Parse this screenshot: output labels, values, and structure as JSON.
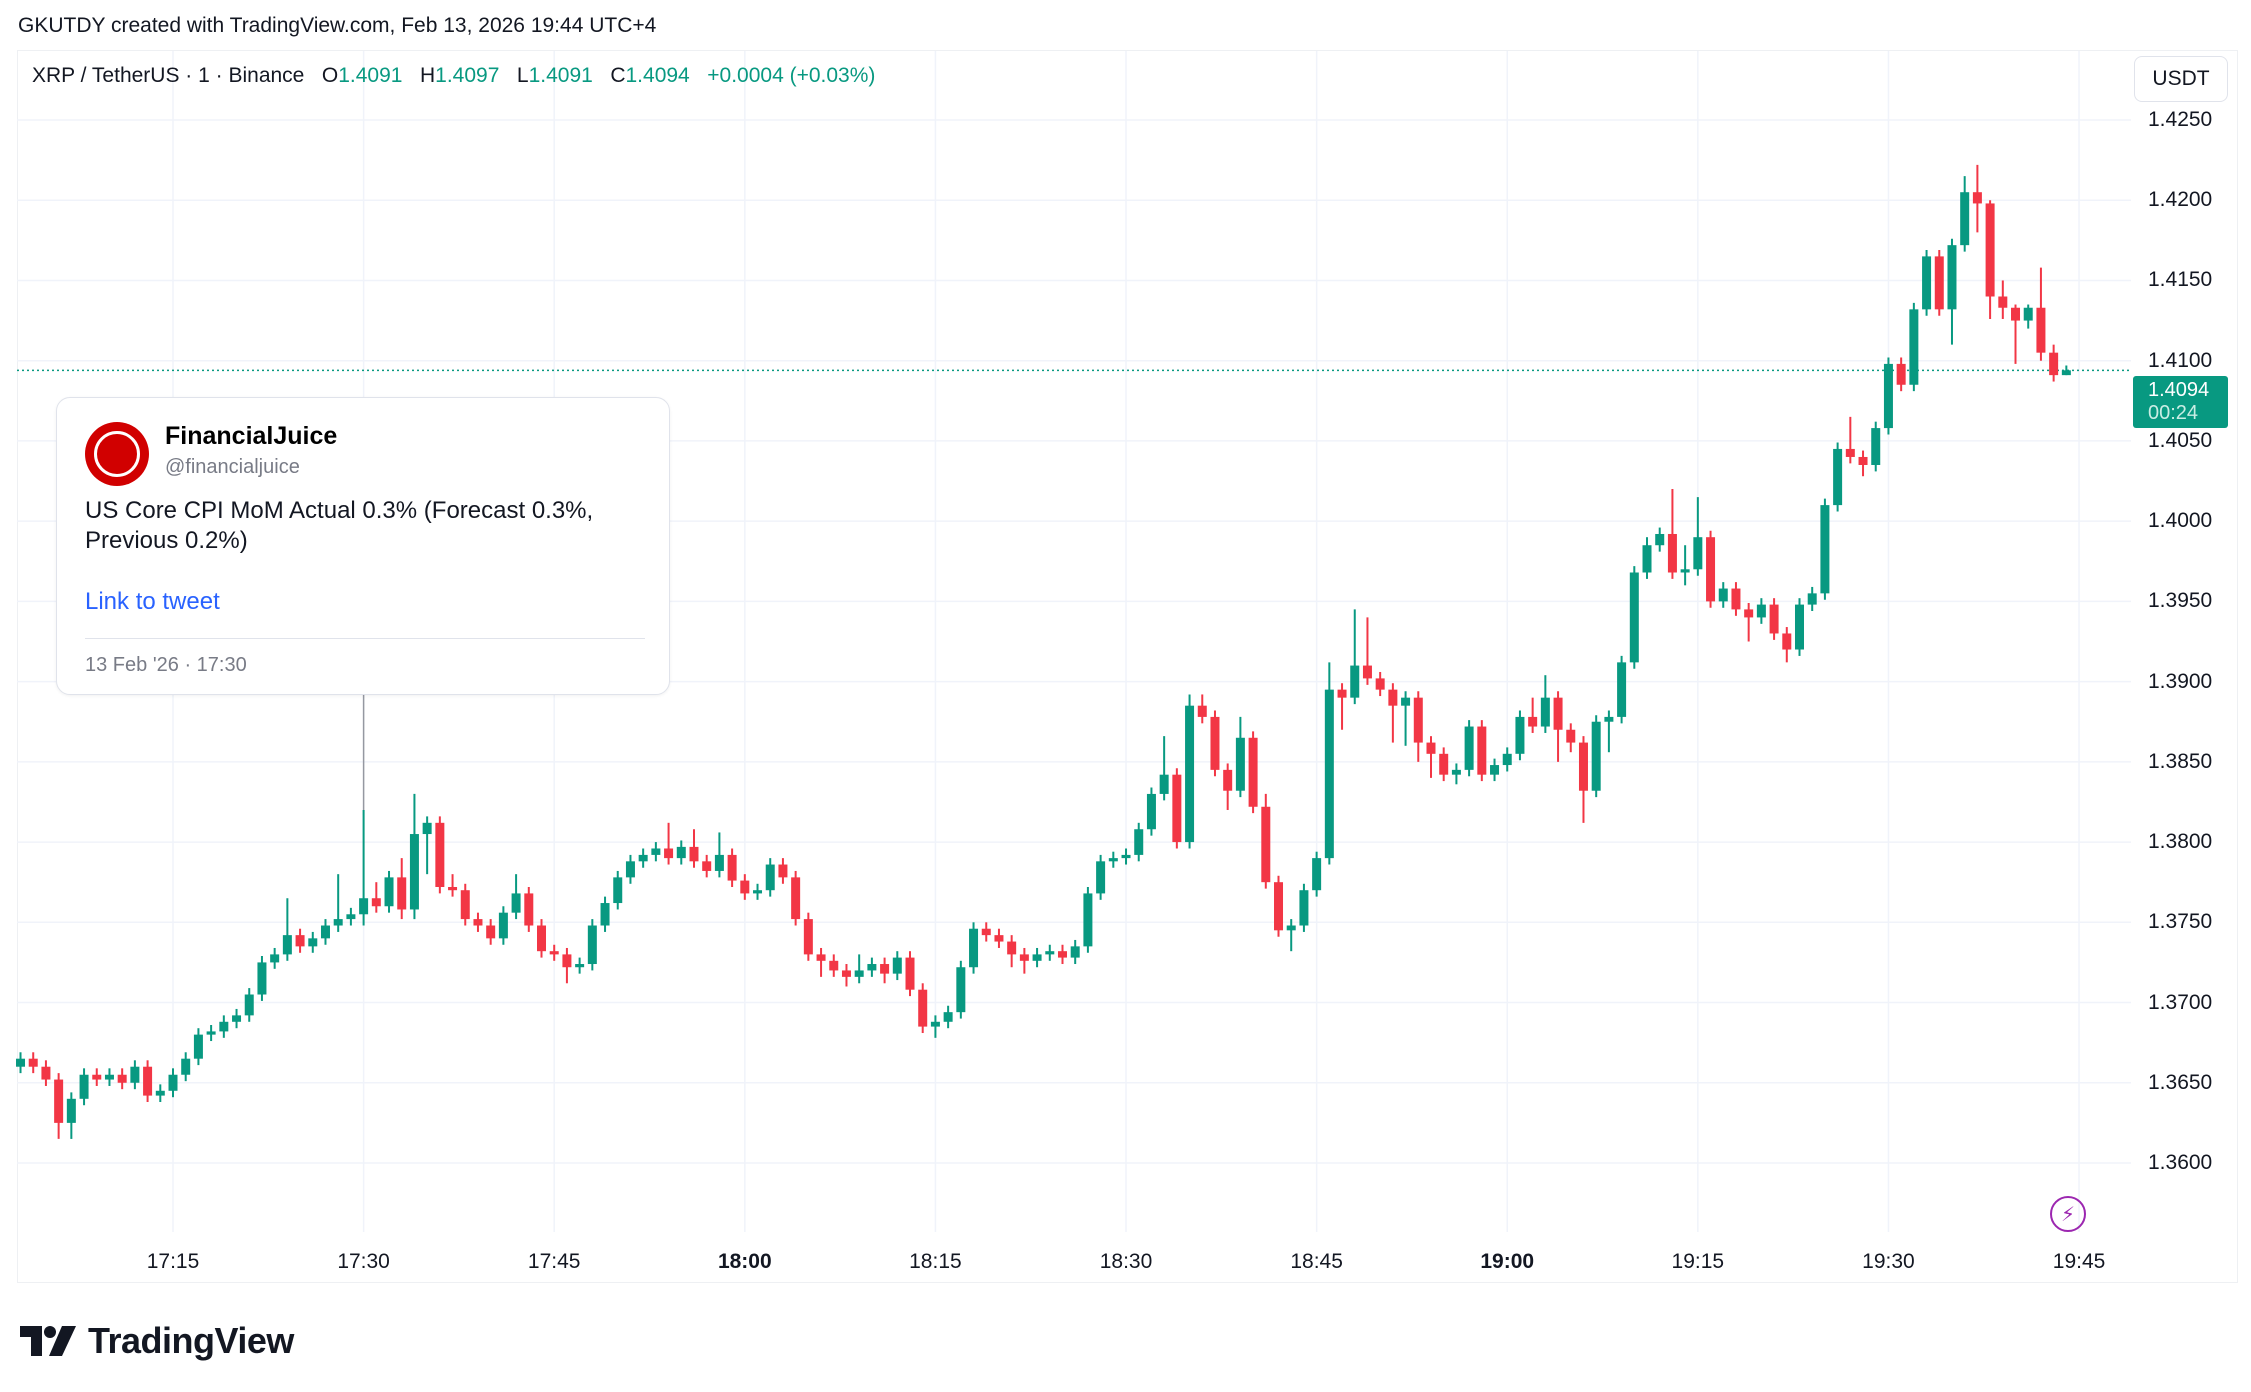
{
  "credit": "GKUTDY created with TradingView.com, Feb 13, 2026 19:44 UTC+4",
  "legend": {
    "symbol": "XRP / TetherUS · 1 · Binance",
    "o_label": "O",
    "o": "1.4091",
    "h_label": "H",
    "h": "1.4097",
    "l_label": "L",
    "l": "1.4091",
    "c_label": "C",
    "c": "1.4094",
    "change": "+0.0004 (+0.03%)"
  },
  "currency_button": "USDT",
  "current_price": {
    "price": "1.4094",
    "countdown": "00:24"
  },
  "tweet": {
    "name": "FinancialJuice",
    "handle": "@financialjuice",
    "text": "US Core CPI MoM Actual 0.3% (Forecast 0.3%, Previous 0.2%)",
    "link": "Link to tweet",
    "date": "13 Feb '26 · 17:30",
    "time": "17:30"
  },
  "brand": "TradingView",
  "colors": {
    "up": "#089981",
    "down": "#F23645",
    "grid": "#f0f3fa",
    "event": "#9c27b0",
    "link": "#2962ff"
  },
  "icons": {
    "event": "lightning-icon",
    "avatar": "financialjuice-logo"
  },
  "chart_data": {
    "type": "candlestick",
    "interval": "1m",
    "ylim": [
      1.3555,
      1.4285
    ],
    "y_ticks": [
      "1.4250",
      "1.4200",
      "1.4150",
      "1.4100",
      "1.4050",
      "1.4000",
      "1.3950",
      "1.3900",
      "1.3850",
      "1.3800",
      "1.3750",
      "1.3700",
      "1.3650",
      "1.3600"
    ],
    "x_ticks": [
      {
        "t": "17:15",
        "bold": false
      },
      {
        "t": "17:30",
        "bold": false
      },
      {
        "t": "17:45",
        "bold": false
      },
      {
        "t": "18:00",
        "bold": true
      },
      {
        "t": "18:15",
        "bold": false
      },
      {
        "t": "18:30",
        "bold": false
      },
      {
        "t": "18:45",
        "bold": false
      },
      {
        "t": "19:00",
        "bold": true
      },
      {
        "t": "19:15",
        "bold": false
      },
      {
        "t": "19:30",
        "bold": false
      },
      {
        "t": "19:45",
        "bold": false
      }
    ],
    "grid": true,
    "last_price": 1.4094,
    "candles_columns": [
      "time",
      "open",
      "high",
      "low",
      "close"
    ],
    "candles": [
      [
        "17:03",
        1.366,
        1.3669,
        1.3656,
        1.3665
      ],
      [
        "17:04",
        1.3665,
        1.3669,
        1.3656,
        1.366
      ],
      [
        "17:05",
        1.366,
        1.3664,
        1.3648,
        1.3652
      ],
      [
        "17:06",
        1.3652,
        1.3656,
        1.3615,
        1.3625
      ],
      [
        "17:07",
        1.3625,
        1.3644,
        1.3615,
        1.364
      ],
      [
        "17:08",
        1.364,
        1.3659,
        1.3636,
        1.3655
      ],
      [
        "17:09",
        1.3655,
        1.3659,
        1.3648,
        1.3652
      ],
      [
        "17:10",
        1.3652,
        1.3659,
        1.3648,
        1.3655
      ],
      [
        "17:11",
        1.3655,
        1.3659,
        1.3646,
        1.365
      ],
      [
        "17:12",
        1.365,
        1.3664,
        1.3646,
        1.366
      ],
      [
        "17:13",
        1.366,
        1.3664,
        1.3638,
        1.3642
      ],
      [
        "17:14",
        1.3642,
        1.3649,
        1.3638,
        1.3645
      ],
      [
        "17:15",
        1.3645,
        1.3659,
        1.3641,
        1.3655
      ],
      [
        "17:16",
        1.3655,
        1.3669,
        1.3651,
        1.3665
      ],
      [
        "17:17",
        1.3665,
        1.3684,
        1.3661,
        1.368
      ],
      [
        "17:18",
        1.368,
        1.3686,
        1.3676,
        1.3682
      ],
      [
        "17:19",
        1.3682,
        1.3692,
        1.3678,
        1.3688
      ],
      [
        "17:20",
        1.3688,
        1.3696,
        1.3684,
        1.3692
      ],
      [
        "17:21",
        1.3692,
        1.3709,
        1.3688,
        1.3705
      ],
      [
        "17:22",
        1.3705,
        1.3729,
        1.3701,
        1.3725
      ],
      [
        "17:23",
        1.3725,
        1.3734,
        1.3721,
        1.373
      ],
      [
        "17:24",
        1.373,
        1.3765,
        1.3726,
        1.3742
      ],
      [
        "17:25",
        1.3742,
        1.3746,
        1.3731,
        1.3735
      ],
      [
        "17:26",
        1.3735,
        1.3744,
        1.3731,
        1.374
      ],
      [
        "17:27",
        1.374,
        1.3752,
        1.3736,
        1.3748
      ],
      [
        "17:28",
        1.3748,
        1.378,
        1.3744,
        1.3752
      ],
      [
        "17:29",
        1.3752,
        1.3759,
        1.3748,
        1.3755
      ],
      [
        "17:30",
        1.3755,
        1.382,
        1.3748,
        1.3765
      ],
      [
        "17:31",
        1.3765,
        1.3775,
        1.3756,
        1.376
      ],
      [
        "17:32",
        1.376,
        1.3782,
        1.3756,
        1.3778
      ],
      [
        "17:33",
        1.3778,
        1.379,
        1.3752,
        1.3758
      ],
      [
        "17:34",
        1.3758,
        1.383,
        1.3752,
        1.3805
      ],
      [
        "17:35",
        1.3805,
        1.3816,
        1.378,
        1.3812
      ],
      [
        "17:36",
        1.3812,
        1.3816,
        1.3768,
        1.3772
      ],
      [
        "17:37",
        1.3772,
        1.378,
        1.3766,
        1.377
      ],
      [
        "17:38",
        1.377,
        1.3774,
        1.3748,
        1.3752
      ],
      [
        "17:39",
        1.3752,
        1.3756,
        1.3744,
        1.3748
      ],
      [
        "17:40",
        1.3748,
        1.3752,
        1.3736,
        1.374
      ],
      [
        "17:41",
        1.374,
        1.376,
        1.3736,
        1.3756
      ],
      [
        "17:42",
        1.3756,
        1.378,
        1.3752,
        1.3768
      ],
      [
        "17:43",
        1.3768,
        1.3772,
        1.3744,
        1.3748
      ],
      [
        "17:44",
        1.3748,
        1.3752,
        1.3728,
        1.3732
      ],
      [
        "17:45",
        1.3732,
        1.3736,
        1.3726,
        1.373
      ],
      [
        "17:46",
        1.373,
        1.3734,
        1.3712,
        1.3722
      ],
      [
        "17:47",
        1.3722,
        1.3728,
        1.3718,
        1.3724
      ],
      [
        "17:48",
        1.3724,
        1.3752,
        1.372,
        1.3748
      ],
      [
        "17:49",
        1.3748,
        1.3766,
        1.3744,
        1.3762
      ],
      [
        "17:50",
        1.3762,
        1.3782,
        1.3758,
        1.3778
      ],
      [
        "17:51",
        1.3778,
        1.3792,
        1.3774,
        1.3788
      ],
      [
        "17:52",
        1.3788,
        1.3796,
        1.3784,
        1.3792
      ],
      [
        "17:53",
        1.3792,
        1.38,
        1.3788,
        1.3796
      ],
      [
        "17:54",
        1.3796,
        1.3812,
        1.3786,
        1.379
      ],
      [
        "17:55",
        1.379,
        1.3801,
        1.3786,
        1.3797
      ],
      [
        "17:56",
        1.3797,
        1.3808,
        1.3784,
        1.3788
      ],
      [
        "17:57",
        1.3788,
        1.3792,
        1.3778,
        1.3782
      ],
      [
        "17:58",
        1.3782,
        1.3806,
        1.3778,
        1.3792
      ],
      [
        "17:59",
        1.3792,
        1.3796,
        1.3772,
        1.3776
      ],
      [
        "18:00",
        1.3776,
        1.378,
        1.3764,
        1.3768
      ],
      [
        "18:01",
        1.3768,
        1.3774,
        1.3764,
        1.377
      ],
      [
        "18:02",
        1.377,
        1.379,
        1.3766,
        1.3786
      ],
      [
        "18:03",
        1.3786,
        1.379,
        1.3774,
        1.3778
      ],
      [
        "18:04",
        1.3778,
        1.3782,
        1.3748,
        1.3752
      ],
      [
        "18:05",
        1.3752,
        1.3756,
        1.3726,
        1.373
      ],
      [
        "18:06",
        1.373,
        1.3734,
        1.3716,
        1.3726
      ],
      [
        "18:07",
        1.3726,
        1.373,
        1.3716,
        1.372
      ],
      [
        "18:08",
        1.372,
        1.3724,
        1.371,
        1.3716
      ],
      [
        "18:09",
        1.3716,
        1.373,
        1.3712,
        1.372
      ],
      [
        "18:10",
        1.372,
        1.3728,
        1.3716,
        1.3724
      ],
      [
        "18:11",
        1.3724,
        1.3728,
        1.3712,
        1.3718
      ],
      [
        "18:12",
        1.3718,
        1.3732,
        1.3714,
        1.3728
      ],
      [
        "18:13",
        1.3728,
        1.3732,
        1.3704,
        1.3708
      ],
      [
        "18:14",
        1.3708,
        1.3712,
        1.3681,
        1.3685
      ],
      [
        "18:15",
        1.3685,
        1.3692,
        1.3678,
        1.3688
      ],
      [
        "18:16",
        1.3688,
        1.3698,
        1.3684,
        1.3694
      ],
      [
        "18:17",
        1.3694,
        1.3726,
        1.369,
        1.3722
      ],
      [
        "18:18",
        1.3722,
        1.375,
        1.3718,
        1.3746
      ],
      [
        "18:19",
        1.3746,
        1.375,
        1.3738,
        1.3742
      ],
      [
        "18:20",
        1.3742,
        1.3746,
        1.3734,
        1.3738
      ],
      [
        "18:21",
        1.3738,
        1.3742,
        1.3722,
        1.373
      ],
      [
        "18:22",
        1.373,
        1.3734,
        1.3718,
        1.3726
      ],
      [
        "18:23",
        1.3726,
        1.3734,
        1.3722,
        1.373
      ],
      [
        "18:24",
        1.373,
        1.3736,
        1.3726,
        1.3732
      ],
      [
        "18:25",
        1.3732,
        1.3736,
        1.3724,
        1.3728
      ],
      [
        "18:26",
        1.3728,
        1.3739,
        1.3724,
        1.3735
      ],
      [
        "18:27",
        1.3735,
        1.3772,
        1.3731,
        1.3768
      ],
      [
        "18:28",
        1.3768,
        1.3792,
        1.3764,
        1.3788
      ],
      [
        "18:29",
        1.3788,
        1.3794,
        1.3784,
        1.379
      ],
      [
        "18:30",
        1.379,
        1.3796,
        1.3786,
        1.3792
      ],
      [
        "18:31",
        1.3792,
        1.3812,
        1.3788,
        1.3808
      ],
      [
        "18:32",
        1.3808,
        1.3834,
        1.3804,
        1.383
      ],
      [
        "18:33",
        1.383,
        1.3866,
        1.3826,
        1.3842
      ],
      [
        "18:34",
        1.3842,
        1.3846,
        1.3796,
        1.38
      ],
      [
        "18:35",
        1.38,
        1.3892,
        1.3796,
        1.3885
      ],
      [
        "18:36",
        1.3885,
        1.3892,
        1.3874,
        1.3878
      ],
      [
        "18:37",
        1.3878,
        1.3882,
        1.3841,
        1.3845
      ],
      [
        "18:38",
        1.3845,
        1.3849,
        1.382,
        1.3832
      ],
      [
        "18:39",
        1.3832,
        1.3878,
        1.3828,
        1.3865
      ],
      [
        "18:40",
        1.3865,
        1.3869,
        1.3818,
        1.3822
      ],
      [
        "18:41",
        1.3822,
        1.383,
        1.3771,
        1.3775
      ],
      [
        "18:42",
        1.3775,
        1.3779,
        1.3741,
        1.3745
      ],
      [
        "18:43",
        1.3745,
        1.3752,
        1.3732,
        1.3748
      ],
      [
        "18:44",
        1.3748,
        1.3774,
        1.3744,
        1.377
      ],
      [
        "18:45",
        1.377,
        1.3794,
        1.3766,
        1.379
      ],
      [
        "18:46",
        1.379,
        1.3912,
        1.3786,
        1.3895
      ],
      [
        "18:47",
        1.3895,
        1.3899,
        1.387,
        1.389
      ],
      [
        "18:48",
        1.389,
        1.3945,
        1.3886,
        1.391
      ],
      [
        "18:49",
        1.391,
        1.394,
        1.3898,
        1.3902
      ],
      [
        "18:50",
        1.3902,
        1.3906,
        1.3891,
        1.3895
      ],
      [
        "18:51",
        1.3895,
        1.3899,
        1.3862,
        1.3885
      ],
      [
        "18:52",
        1.3885,
        1.3894,
        1.386,
        1.389
      ],
      [
        "18:53",
        1.389,
        1.3894,
        1.385,
        1.3862
      ],
      [
        "18:54",
        1.3862,
        1.3866,
        1.384,
        1.3855
      ],
      [
        "18:55",
        1.3855,
        1.3859,
        1.3838,
        1.3842
      ],
      [
        "18:56",
        1.3842,
        1.3849,
        1.3836,
        1.3845
      ],
      [
        "18:57",
        1.3845,
        1.3876,
        1.3841,
        1.3872
      ],
      [
        "18:58",
        1.3872,
        1.3876,
        1.3838,
        1.3842
      ],
      [
        "18:59",
        1.3842,
        1.3852,
        1.3838,
        1.3848
      ],
      [
        "19:00",
        1.3848,
        1.3859,
        1.3844,
        1.3855
      ],
      [
        "19:01",
        1.3855,
        1.3882,
        1.3851,
        1.3878
      ],
      [
        "19:02",
        1.3878,
        1.389,
        1.3868,
        1.3872
      ],
      [
        "19:03",
        1.3872,
        1.3904,
        1.3868,
        1.389
      ],
      [
        "19:04",
        1.389,
        1.3894,
        1.385,
        1.387
      ],
      [
        "19:05",
        1.387,
        1.3874,
        1.3856,
        1.3862
      ],
      [
        "19:06",
        1.3862,
        1.3866,
        1.3812,
        1.3832
      ],
      [
        "19:07",
        1.3832,
        1.3879,
        1.3828,
        1.3875
      ],
      [
        "19:08",
        1.3875,
        1.3882,
        1.3856,
        1.3878
      ],
      [
        "19:09",
        1.3878,
        1.3916,
        1.3874,
        1.3912
      ],
      [
        "19:10",
        1.3912,
        1.3972,
        1.3908,
        1.3968
      ],
      [
        "19:11",
        1.3968,
        1.399,
        1.3964,
        1.3985
      ],
      [
        "19:12",
        1.3985,
        1.3996,
        1.3981,
        1.3992
      ],
      [
        "19:13",
        1.3992,
        1.402,
        1.3964,
        1.3968
      ],
      [
        "19:14",
        1.3968,
        1.3985,
        1.396,
        1.397
      ],
      [
        "19:15",
        1.397,
        1.4015,
        1.3966,
        1.399
      ],
      [
        "19:16",
        1.399,
        1.3994,
        1.3946,
        1.395
      ],
      [
        "19:17",
        1.395,
        1.3962,
        1.3946,
        1.3958
      ],
      [
        "19:18",
        1.3958,
        1.3962,
        1.3941,
        1.3945
      ],
      [
        "19:19",
        1.3945,
        1.3949,
        1.3925,
        1.394
      ],
      [
        "19:20",
        1.394,
        1.3952,
        1.3936,
        1.3948
      ],
      [
        "19:21",
        1.3948,
        1.3952,
        1.3926,
        1.393
      ],
      [
        "19:22",
        1.393,
        1.3934,
        1.3912,
        1.392
      ],
      [
        "19:23",
        1.392,
        1.3952,
        1.3916,
        1.3948
      ],
      [
        "19:24",
        1.3948,
        1.3959,
        1.3944,
        1.3955
      ],
      [
        "19:25",
        1.3955,
        1.4014,
        1.3951,
        1.401
      ],
      [
        "19:26",
        1.401,
        1.4049,
        1.4006,
        1.4045
      ],
      [
        "19:27",
        1.4045,
        1.4065,
        1.4036,
        1.404
      ],
      [
        "19:28",
        1.404,
        1.4044,
        1.4028,
        1.4035
      ],
      [
        "19:29",
        1.4035,
        1.4062,
        1.4031,
        1.4058
      ],
      [
        "19:30",
        1.4058,
        1.4102,
        1.4054,
        1.4098
      ],
      [
        "19:31",
        1.4098,
        1.4102,
        1.4081,
        1.4085
      ],
      [
        "19:32",
        1.4085,
        1.4136,
        1.4081,
        1.4132
      ],
      [
        "19:33",
        1.4132,
        1.4169,
        1.4128,
        1.4165
      ],
      [
        "19:34",
        1.4165,
        1.4169,
        1.4128,
        1.4132
      ],
      [
        "19:35",
        1.4132,
        1.4176,
        1.411,
        1.4172
      ],
      [
        "19:36",
        1.4172,
        1.4215,
        1.4168,
        1.4205
      ],
      [
        "19:37",
        1.4205,
        1.4222,
        1.418,
        1.4198
      ],
      [
        "19:38",
        1.4198,
        1.42,
        1.4126,
        1.414
      ],
      [
        "19:39",
        1.414,
        1.415,
        1.4126,
        1.4133
      ],
      [
        "19:40",
        1.4133,
        1.4135,
        1.4098,
        1.4125
      ],
      [
        "19:41",
        1.4125,
        1.4135,
        1.412,
        1.4133
      ],
      [
        "19:42",
        1.4133,
        1.4158,
        1.41,
        1.4105
      ],
      [
        "19:43",
        1.4105,
        1.411,
        1.4087,
        1.4091
      ],
      [
        "19:44",
        1.4091,
        1.4097,
        1.4091,
        1.4094
      ]
    ]
  }
}
